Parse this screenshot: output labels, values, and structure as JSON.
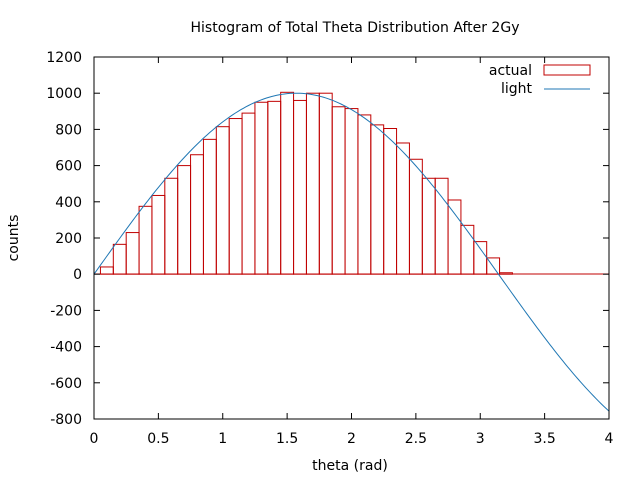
{
  "chart_data": {
    "type": "bar",
    "title": "Histogram of Total Theta Distribution After 2Gy",
    "xlabel": "theta (rad)",
    "ylabel": "counts",
    "xlim": [
      0,
      4
    ],
    "ylim": [
      -800,
      1200
    ],
    "xticks": [
      "0",
      "0.5",
      "1",
      "1.5",
      "2",
      "2.5",
      "3",
      "3.5",
      "4"
    ],
    "yticks": [
      "-800",
      "-600",
      "-400",
      "-200",
      "0",
      "200",
      "400",
      "600",
      "800",
      "1000",
      "1200"
    ],
    "grid": false,
    "legend_position": "top-right",
    "bin_width": 0.1,
    "series": [
      {
        "name": "actual",
        "kind": "histogram",
        "color": "#c00000",
        "x": [
          0.1,
          0.2,
          0.3,
          0.4,
          0.5,
          0.6,
          0.7,
          0.8,
          0.9,
          1.0,
          1.1,
          1.2,
          1.3,
          1.4,
          1.5,
          1.6,
          1.7,
          1.8,
          1.9,
          2.0,
          2.1,
          2.2,
          2.3,
          2.4,
          2.5,
          2.6,
          2.7,
          2.8,
          2.9,
          3.0,
          3.1,
          3.2
        ],
        "values": [
          40,
          165,
          230,
          375,
          435,
          530,
          600,
          660,
          745,
          815,
          860,
          890,
          950,
          955,
          1005,
          960,
          1000,
          1000,
          925,
          915,
          880,
          825,
          805,
          725,
          635,
          530,
          530,
          410,
          270,
          180,
          90,
          8
        ]
      },
      {
        "name": "light",
        "kind": "line",
        "color": "#1f77b4",
        "amplitude": 1000,
        "function": "sin",
        "x_range": [
          0,
          4
        ]
      }
    ]
  }
}
